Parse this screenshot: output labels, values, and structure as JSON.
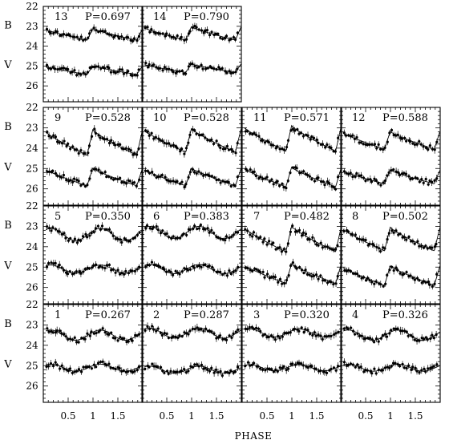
{
  "chart_data": {
    "type": "scatter",
    "xlabel": "PHASE",
    "x_ticks": [
      "0.5",
      "1",
      "1.5"
    ],
    "xlim": [
      0,
      2
    ],
    "y_ticks": [
      "22",
      "23",
      "24",
      "25",
      "26"
    ],
    "ylim": [
      26.8,
      22
    ],
    "y_inverted": true,
    "band_labels": [
      "B",
      "V"
    ],
    "panels": [
      {
        "id": "13",
        "period": "P=0.697",
        "B_mean": 23.4,
        "B_amp": 0.6,
        "V_mean": 25.2,
        "V_amp": 0.45,
        "shape": "rrab"
      },
      {
        "id": "14",
        "period": "P=0.790",
        "B_mean": 23.35,
        "B_amp": 0.7,
        "V_mean": 25.1,
        "V_amp": 0.45,
        "shape": "rrab"
      },
      {
        "id": "9",
        "period": "P=0.528",
        "B_mean": 23.7,
        "B_amp": 1.3,
        "V_mean": 25.4,
        "V_amp": 0.9,
        "shape": "rrab"
      },
      {
        "id": "10",
        "period": "P=0.528",
        "B_mean": 23.6,
        "B_amp": 1.2,
        "V_mean": 25.4,
        "V_amp": 0.9,
        "shape": "rrab"
      },
      {
        "id": "11",
        "period": "P=0.571",
        "B_mean": 23.5,
        "B_amp": 1.3,
        "V_mean": 25.4,
        "V_amp": 1.0,
        "shape": "rrab"
      },
      {
        "id": "12",
        "period": "P=0.588",
        "B_mean": 23.6,
        "B_amp": 0.9,
        "V_mean": 25.4,
        "V_amp": 0.7,
        "shape": "rrab"
      },
      {
        "id": "5",
        "period": "P=0.350",
        "B_mean": 23.4,
        "B_amp": 0.6,
        "V_mean": 25.1,
        "V_amp": 0.4,
        "shape": "rrc"
      },
      {
        "id": "6",
        "period": "P=0.383",
        "B_mean": 23.3,
        "B_amp": 0.6,
        "V_mean": 25.1,
        "V_amp": 0.45,
        "shape": "rrc"
      },
      {
        "id": "7",
        "period": "P=0.482",
        "B_mean": 23.6,
        "B_amp": 1.3,
        "V_mean": 25.3,
        "V_amp": 1.0,
        "shape": "rrab"
      },
      {
        "id": "8",
        "period": "P=0.502",
        "B_mean": 23.6,
        "B_amp": 1.2,
        "V_mean": 25.4,
        "V_amp": 1.0,
        "shape": "rrab"
      },
      {
        "id": "1",
        "period": "P=0.267",
        "B_mean": 23.5,
        "B_amp": 0.5,
        "V_mean": 25.1,
        "V_amp": 0.35,
        "shape": "rrc"
      },
      {
        "id": "2",
        "period": "P=0.287",
        "B_mean": 23.4,
        "B_amp": 0.5,
        "V_mean": 25.2,
        "V_amp": 0.35,
        "shape": "rrc"
      },
      {
        "id": "3",
        "period": "P=0.320",
        "B_mean": 23.4,
        "B_amp": 0.4,
        "V_mean": 25.1,
        "V_amp": 0.3,
        "shape": "rrc"
      },
      {
        "id": "4",
        "period": "P=0.326",
        "B_mean": 23.5,
        "B_amp": 0.5,
        "V_mean": 25.1,
        "V_amp": 0.35,
        "shape": "rrc"
      }
    ]
  }
}
